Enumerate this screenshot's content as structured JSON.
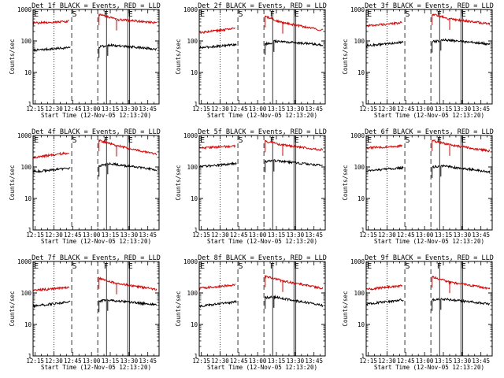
{
  "chart_data": [
    {
      "type": "line",
      "title": "Det 1f BLACK = Events, RED = LLD",
      "xlabel": "Start Time (12-Nov-05 12:13:20)",
      "ylabel": "Counts/sec",
      "yscale": "log",
      "ylim": [
        1,
        1000
      ],
      "yticks": [
        "1",
        "10",
        "100",
        "1000"
      ],
      "xticks": [
        "12:15",
        "12:30",
        "12:45",
        "13:00",
        "13:15",
        "13:30",
        "13:45"
      ],
      "markers": [
        "E",
        "S",
        "F",
        "E"
      ],
      "series": [
        {
          "name": "Events",
          "color": "#000000",
          "segments": [
            {
              "t": [
                "12:13",
                "12:43"
              ],
              "y": [
                50,
                62
              ]
            },
            {
              "t": [
                "13:06",
                "13:12"
              ],
              "y": [
                65,
                70
              ]
            },
            {
              "t": [
                "13:13",
                "13:52"
              ],
              "y": [
                75,
                55
              ]
            }
          ]
        },
        {
          "name": "LLD",
          "color": "#e00000",
          "segments": [
            {
              "t": [
                "12:13",
                "12:42"
              ],
              "y": [
                370,
                420
              ]
            },
            {
              "t": [
                "13:06",
                "13:20"
              ],
              "y": [
                700,
                480
              ]
            },
            {
              "t": [
                "13:20",
                "13:52"
              ],
              "y": [
                480,
                380
              ]
            }
          ]
        }
      ]
    },
    {
      "type": "line",
      "title": "Det 2f BLACK = Events, RED = LLD",
      "xlabel": "Start Time (12-Nov-05 12:13:20)",
      "ylabel": "Counts/sec",
      "yscale": "log",
      "ylim": [
        1,
        1000
      ],
      "yticks": [
        "1",
        "10",
        "100",
        "1000"
      ],
      "xticks": [
        "12:15",
        "12:30",
        "12:45",
        "13:00",
        "13:15",
        "13:30",
        "13:45"
      ],
      "markers": [
        "E",
        "S",
        "F",
        "E"
      ],
      "series": [
        {
          "name": "Events",
          "color": "#000000",
          "segments": [
            {
              "t": [
                "12:13",
                "12:43"
              ],
              "y": [
                60,
                78
              ]
            },
            {
              "t": [
                "13:06",
                "13:12"
              ],
              "y": [
                80,
                88
              ]
            },
            {
              "t": [
                "13:13",
                "13:52"
              ],
              "y": [
                100,
                75
              ]
            }
          ]
        },
        {
          "name": "LLD",
          "color": "#e00000",
          "segments": [
            {
              "t": [
                "12:13",
                "12:42"
              ],
              "y": [
                180,
                250
              ]
            },
            {
              "t": [
                "13:06",
                "13:20"
              ],
              "y": [
                600,
                380
              ]
            },
            {
              "t": [
                "13:20",
                "13:52"
              ],
              "y": [
                380,
                220
              ]
            }
          ]
        }
      ]
    },
    {
      "type": "line",
      "title": "Det 3f BLACK = Events, RED = LLD",
      "xlabel": "Start Time (12-Nov-05 12:13:20)",
      "ylabel": "Counts/sec",
      "yscale": "log",
      "ylim": [
        1,
        1000
      ],
      "yticks": [
        "1",
        "10",
        "100",
        "1000"
      ],
      "xticks": [
        "12:15",
        "12:30",
        "12:45",
        "13:00",
        "13:15",
        "13:30",
        "13:45"
      ],
      "markers": [
        "E",
        "S",
        "F",
        "E"
      ],
      "series": [
        {
          "name": "Events",
          "color": "#000000",
          "segments": [
            {
              "t": [
                "12:13",
                "12:43"
              ],
              "y": [
                70,
                92
              ]
            },
            {
              "t": [
                "13:06",
                "13:12"
              ],
              "y": [
                95,
                100
              ]
            },
            {
              "t": [
                "13:13",
                "13:52"
              ],
              "y": [
                110,
                80
              ]
            }
          ]
        },
        {
          "name": "LLD",
          "color": "#e00000",
          "segments": [
            {
              "t": [
                "12:13",
                "12:42"
              ],
              "y": [
                300,
                380
              ]
            },
            {
              "t": [
                "13:06",
                "13:20"
              ],
              "y": [
                700,
                500
              ]
            },
            {
              "t": [
                "13:20",
                "13:52"
              ],
              "y": [
                500,
                350
              ]
            }
          ]
        }
      ]
    },
    {
      "type": "line",
      "title": "Det 4f BLACK = Events, RED = LLD",
      "xlabel": "Start Time (12-Nov-05 12:13:20)",
      "ylabel": "Counts/sec",
      "yscale": "log",
      "ylim": [
        1,
        1000
      ],
      "yticks": [
        "1",
        "10",
        "100",
        "1000"
      ],
      "xticks": [
        "12:15",
        "12:30",
        "12:45",
        "13:00",
        "13:15",
        "13:30",
        "13:45"
      ],
      "markers": [
        "E",
        "S",
        "F",
        "E"
      ],
      "series": [
        {
          "name": "Events",
          "color": "#000000",
          "segments": [
            {
              "t": [
                "12:13",
                "12:43"
              ],
              "y": [
                70,
                92
              ]
            },
            {
              "t": [
                "13:06",
                "13:12"
              ],
              "y": [
                110,
                120
              ]
            },
            {
              "t": [
                "13:13",
                "13:52"
              ],
              "y": [
                130,
                80
              ]
            }
          ]
        },
        {
          "name": "LLD",
          "color": "#e00000",
          "segments": [
            {
              "t": [
                "12:13",
                "12:42"
              ],
              "y": [
                200,
                280
              ]
            },
            {
              "t": [
                "13:06",
                "13:20"
              ],
              "y": [
                700,
                480
              ]
            },
            {
              "t": [
                "13:20",
                "13:52"
              ],
              "y": [
                480,
                250
              ]
            }
          ]
        }
      ]
    },
    {
      "type": "line",
      "title": "Det 5f BLACK = Events, RED = LLD",
      "xlabel": "Start Time (12-Nov-05 12:13:20)",
      "ylabel": "Counts/sec",
      "yscale": "log",
      "ylim": [
        1,
        1000
      ],
      "yticks": [
        "1",
        "10",
        "100",
        "1000"
      ],
      "xticks": [
        "12:15",
        "12:30",
        "12:45",
        "13:00",
        "13:15",
        "13:30",
        "13:45"
      ],
      "markers": [
        "E",
        "S",
        "F",
        "E"
      ],
      "series": [
        {
          "name": "Events",
          "color": "#000000",
          "segments": [
            {
              "t": [
                "12:13",
                "12:43"
              ],
              "y": [
                100,
                130
              ]
            },
            {
              "t": [
                "13:06",
                "13:12"
              ],
              "y": [
                150,
                155
              ]
            },
            {
              "t": [
                "13:13",
                "13:52"
              ],
              "y": [
                160,
                110
              ]
            }
          ]
        },
        {
          "name": "LLD",
          "color": "#e00000",
          "segments": [
            {
              "t": [
                "12:13",
                "12:42"
              ],
              "y": [
                400,
                460
              ]
            },
            {
              "t": [
                "13:06",
                "13:20"
              ],
              "y": [
                650,
                500
              ]
            },
            {
              "t": [
                "13:20",
                "13:52"
              ],
              "y": [
                500,
                350
              ]
            }
          ]
        }
      ]
    },
    {
      "type": "line",
      "title": "Det 6f BLACK = Events, RED = LLD",
      "xlabel": "Start Time (12-Nov-05 12:13:20)",
      "ylabel": "Counts/sec",
      "yscale": "log",
      "ylim": [
        1,
        1000
      ],
      "yticks": [
        "1",
        "10",
        "100",
        "1000"
      ],
      "xticks": [
        "12:15",
        "12:30",
        "12:45",
        "13:00",
        "13:15",
        "13:30",
        "13:45"
      ],
      "markers": [
        "E",
        "S",
        "F",
        "E"
      ],
      "series": [
        {
          "name": "Events",
          "color": "#000000",
          "segments": [
            {
              "t": [
                "12:13",
                "12:43"
              ],
              "y": [
                75,
                95
              ]
            },
            {
              "t": [
                "13:06",
                "13:12"
              ],
              "y": [
                100,
                105
              ]
            },
            {
              "t": [
                "13:13",
                "13:52"
              ],
              "y": [
                110,
                70
              ]
            }
          ]
        },
        {
          "name": "LLD",
          "color": "#e00000",
          "segments": [
            {
              "t": [
                "12:13",
                "12:42"
              ],
              "y": [
                400,
                460
              ]
            },
            {
              "t": [
                "13:06",
                "13:20"
              ],
              "y": [
                700,
                500
              ]
            },
            {
              "t": [
                "13:20",
                "13:52"
              ],
              "y": [
                500,
                320
              ]
            }
          ]
        }
      ]
    },
    {
      "type": "line",
      "title": "Det 7f BLACK = Events, RED = LLD",
      "xlabel": "Start Time (12-Nov-05 12:13:20)",
      "ylabel": "Counts/sec",
      "yscale": "log",
      "ylim": [
        1,
        1000
      ],
      "yticks": [
        "1",
        "10",
        "100",
        "1000"
      ],
      "xticks": [
        "12:15",
        "12:30",
        "12:45",
        "13:00",
        "13:15",
        "13:30",
        "13:45"
      ],
      "markers": [
        "E",
        "S",
        "F",
        "E"
      ],
      "series": [
        {
          "name": "Events",
          "color": "#000000",
          "segments": [
            {
              "t": [
                "12:13",
                "12:43"
              ],
              "y": [
                38,
                52
              ]
            },
            {
              "t": [
                "13:06",
                "13:12"
              ],
              "y": [
                55,
                60
              ]
            },
            {
              "t": [
                "13:13",
                "13:52"
              ],
              "y": [
                60,
                42
              ]
            }
          ]
        },
        {
          "name": "LLD",
          "color": "#e00000",
          "segments": [
            {
              "t": [
                "12:13",
                "12:42"
              ],
              "y": [
                120,
                150
              ]
            },
            {
              "t": [
                "13:06",
                "13:20"
              ],
              "y": [
                300,
                200
              ]
            },
            {
              "t": [
                "13:20",
                "13:52"
              ],
              "y": [
                200,
                130
              ]
            }
          ]
        }
      ]
    },
    {
      "type": "line",
      "title": "Det 8f BLACK = Events, RED = LLD",
      "xlabel": "Start Time (12-Nov-05 12:13:20)",
      "ylabel": "Counts/sec",
      "yscale": "log",
      "ylim": [
        1,
        1000
      ],
      "yticks": [
        "1",
        "10",
        "100",
        "1000"
      ],
      "xticks": [
        "12:15",
        "12:30",
        "12:45",
        "13:00",
        "13:15",
        "13:30",
        "13:45"
      ],
      "markers": [
        "E",
        "S",
        "F",
        "E"
      ],
      "series": [
        {
          "name": "Events",
          "color": "#000000",
          "segments": [
            {
              "t": [
                "12:13",
                "12:43"
              ],
              "y": [
                38,
                52
              ]
            },
            {
              "t": [
                "13:06",
                "13:12"
              ],
              "y": [
                70,
                75
              ]
            },
            {
              "t": [
                "13:13",
                "13:52"
              ],
              "y": [
                75,
                40
              ]
            }
          ]
        },
        {
          "name": "LLD",
          "color": "#e00000",
          "segments": [
            {
              "t": [
                "12:13",
                "12:42"
              ],
              "y": [
                140,
                180
              ]
            },
            {
              "t": [
                "13:06",
                "13:20"
              ],
              "y": [
                340,
                240
              ]
            },
            {
              "t": [
                "13:20",
                "13:52"
              ],
              "y": [
                240,
                140
              ]
            }
          ]
        }
      ]
    },
    {
      "type": "line",
      "title": "Det 9f BLACK = Events, RED = LLD",
      "xlabel": "Start Time (12-Nov-05 12:13:20)",
      "ylabel": "Counts/sec",
      "yscale": "log",
      "ylim": [
        1,
        1000
      ],
      "yticks": [
        "1",
        "10",
        "100",
        "1000"
      ],
      "xticks": [
        "12:15",
        "12:30",
        "12:45",
        "13:00",
        "13:15",
        "13:30",
        "13:45"
      ],
      "markers": [
        "E",
        "S",
        "F",
        "E"
      ],
      "series": [
        {
          "name": "Events",
          "color": "#000000",
          "segments": [
            {
              "t": [
                "12:13",
                "12:43"
              ],
              "y": [
                45,
                60
              ]
            },
            {
              "t": [
                "13:06",
                "13:12"
              ],
              "y": [
                60,
                65
              ]
            },
            {
              "t": [
                "13:13",
                "13:52"
              ],
              "y": [
                65,
                45
              ]
            }
          ]
        },
        {
          "name": "LLD",
          "color": "#e00000",
          "segments": [
            {
              "t": [
                "12:13",
                "12:42"
              ],
              "y": [
                130,
                170
              ]
            },
            {
              "t": [
                "13:06",
                "13:20"
              ],
              "y": [
                330,
                220
              ]
            },
            {
              "t": [
                "13:20",
                "13:52"
              ],
              "y": [
                220,
                140
              ]
            }
          ]
        }
      ]
    }
  ]
}
